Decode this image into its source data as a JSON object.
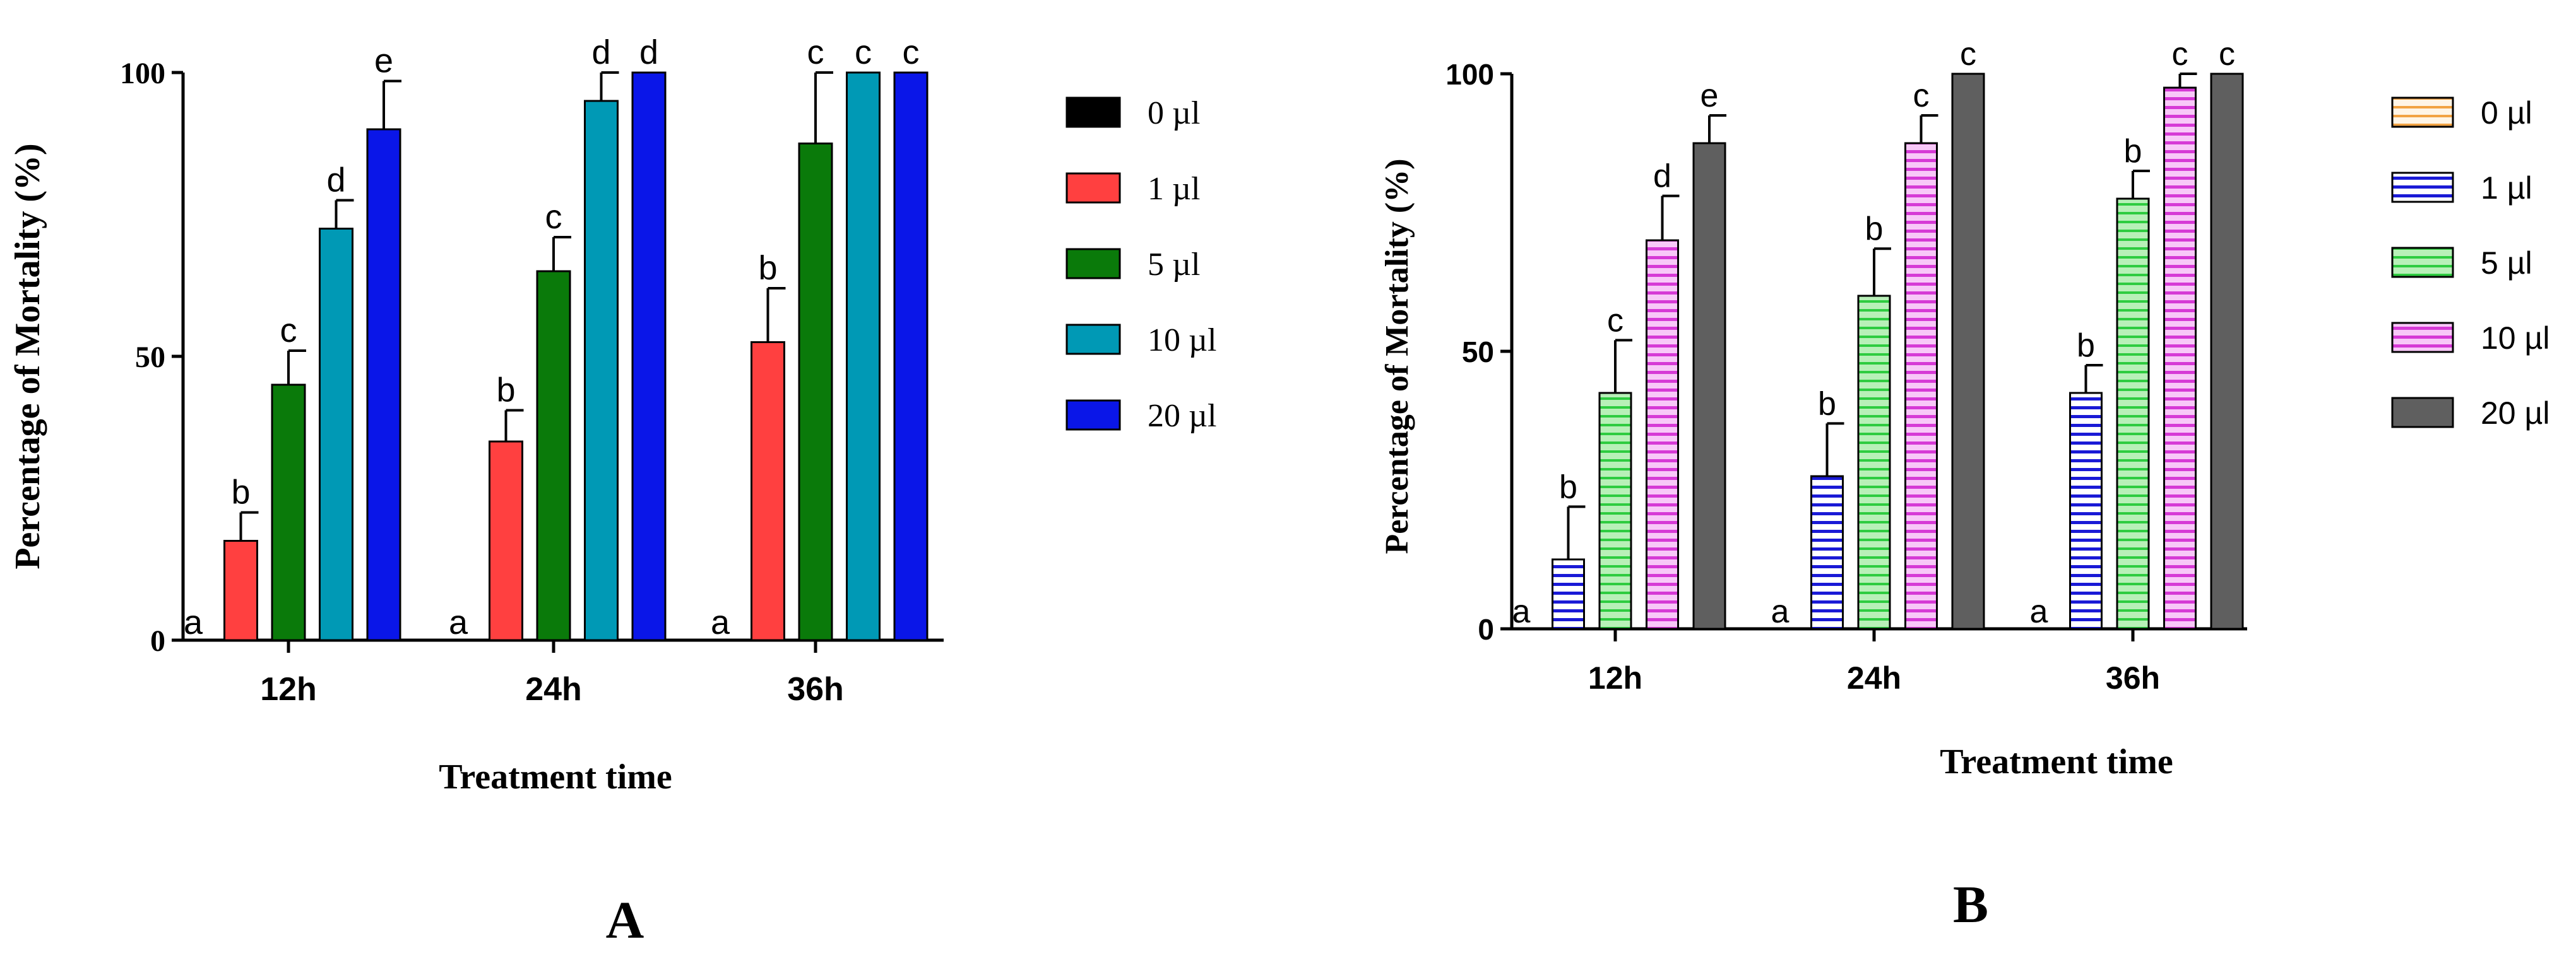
{
  "chart_data": [
    {
      "id": "A",
      "type": "bar",
      "panel_label": "A",
      "xlabel": "Treatment time",
      "ylabel": "Percentage of Mortality (%)",
      "ylim": [
        0,
        100
      ],
      "yticks": [
        "0",
        "50",
        "100"
      ],
      "categories": [
        "12h",
        "24h",
        "36h"
      ],
      "legend_position": "right",
      "series": [
        {
          "name": "0 µl",
          "color": "#000000",
          "pattern": "solid",
          "values": [
            0,
            0,
            0
          ],
          "errors": [
            0,
            0,
            0
          ],
          "letters": [
            "a",
            "a",
            "a"
          ]
        },
        {
          "name": "1 µl",
          "color": "#ff4040",
          "pattern": "solid",
          "values": [
            17.5,
            35,
            52.5
          ],
          "errors": [
            5,
            5.5,
            9.5
          ],
          "letters": [
            "b",
            "b",
            "b"
          ]
        },
        {
          "name": "5 µl",
          "color": "#0a7a0a",
          "pattern": "solid",
          "values": [
            45,
            65,
            87.5
          ],
          "errors": [
            6,
            6,
            12.5
          ],
          "letters": [
            "c",
            "c",
            "c"
          ]
        },
        {
          "name": "10 µl",
          "color": "#0099b5",
          "pattern": "solid",
          "values": [
            72.5,
            95,
            100
          ],
          "errors": [
            5,
            5,
            0
          ],
          "letters": [
            "d",
            "d",
            "c"
          ]
        },
        {
          "name": "20 µl",
          "color": "#0a16e8",
          "pattern": "solid",
          "values": [
            90,
            100,
            100
          ],
          "errors": [
            8.5,
            0,
            0
          ],
          "letters": [
            "e",
            "d",
            "c"
          ]
        }
      ]
    },
    {
      "id": "B",
      "type": "bar",
      "panel_label": "B",
      "xlabel": "Treatment time",
      "ylabel": "Percentage of Mortality (%)",
      "ylim": [
        0,
        100
      ],
      "yticks": [
        "0",
        "50",
        "100"
      ],
      "categories": [
        "12h",
        "24h",
        "36h"
      ],
      "legend_position": "right",
      "series": [
        {
          "name": "0 µl",
          "color": "#f2a343",
          "pattern": "hatch-orange",
          "values": [
            0,
            0,
            0
          ],
          "errors": [
            0,
            0,
            0
          ],
          "letters": [
            "a",
            "a",
            "a"
          ]
        },
        {
          "name": "1 µl",
          "color": "#1a1ad6",
          "pattern": "hatch-blue",
          "values": [
            12.5,
            27.5,
            42.5
          ],
          "errors": [
            9.5,
            9.5,
            5
          ],
          "letters": [
            "b",
            "b",
            "b"
          ]
        },
        {
          "name": "5 µl",
          "color": "#2ecc40",
          "pattern": "hatch-green",
          "values": [
            42.5,
            60,
            77.5
          ],
          "errors": [
            9.5,
            8.5,
            5
          ],
          "letters": [
            "c",
            "b",
            "b"
          ]
        },
        {
          "name": "10 µl",
          "color": "#d63ad6",
          "pattern": "hatch-pink",
          "values": [
            70,
            87.5,
            97.5
          ],
          "errors": [
            8,
            5,
            2.5
          ],
          "letters": [
            "d",
            "c",
            "c"
          ]
        },
        {
          "name": "20 µl",
          "color": "#5f5f5f",
          "pattern": "solid",
          "values": [
            87.5,
            100,
            100
          ],
          "errors": [
            5,
            0,
            0
          ],
          "letters": [
            "e",
            "c",
            "c"
          ]
        }
      ]
    }
  ]
}
